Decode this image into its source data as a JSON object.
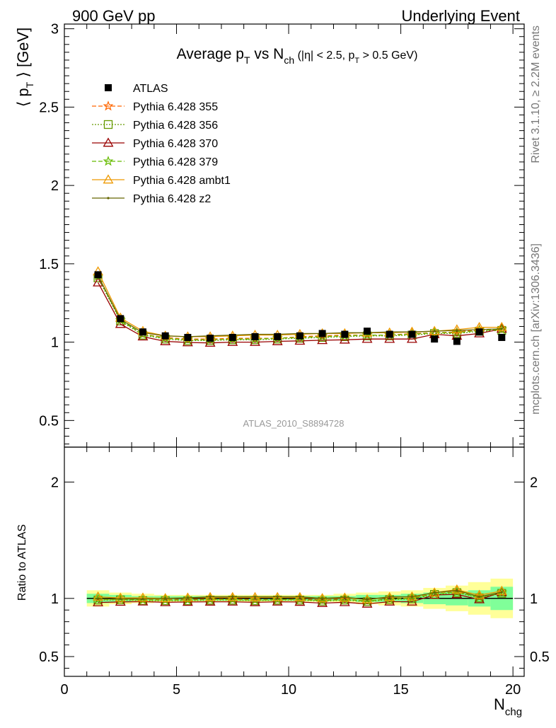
{
  "header": {
    "left": "900 GeV pp",
    "right": "Underlying Event"
  },
  "side_labels": {
    "rivet": "Rivet 3.1.10, ≥ 2.2M events",
    "mcplots": "mcplots.cern.ch [arXiv:1306.3436]"
  },
  "chart_data": {
    "type": "line",
    "title": "Average pT vs Nch (|η| < 2.5, pT > 0.5 GeV)",
    "analysis_label": "ATLAS_2010_S8894728",
    "xlabel": "Nchg",
    "ylabel": "⟨ pT ⟩ [GeV]",
    "xlim": [
      0,
      20.5
    ],
    "ylim": [
      0.33,
      3.03
    ],
    "xticks": [
      0,
      5,
      10,
      15,
      20
    ],
    "yticks": [
      0.5,
      1,
      1.5,
      2,
      2.5,
      3
    ],
    "legend_position": "top-left",
    "x": [
      1.5,
      2.5,
      3.5,
      4.5,
      5.5,
      6.5,
      7.5,
      8.5,
      9.5,
      10.5,
      11.5,
      12.5,
      13.5,
      14.5,
      15.5,
      16.5,
      17.5,
      18.5,
      19.5
    ],
    "data_series": {
      "name": "ATLAS",
      "values": [
        1.43,
        1.15,
        1.065,
        1.04,
        1.03,
        1.025,
        1.03,
        1.035,
        1.035,
        1.04,
        1.055,
        1.05,
        1.07,
        1.05,
        1.05,
        1.02,
        1.005,
        1.065,
        1.03
      ]
    },
    "series": [
      {
        "name": "Pythia 6.428 355",
        "color": "#ff6600",
        "dash": "6,3",
        "marker": "star",
        "values": [
          1.42,
          1.14,
          1.05,
          1.03,
          1.02,
          1.02,
          1.025,
          1.025,
          1.025,
          1.035,
          1.04,
          1.045,
          1.045,
          1.045,
          1.055,
          1.06,
          1.065,
          1.08,
          1.085
        ]
      },
      {
        "name": "Pythia 6.428 356",
        "color": "#669900",
        "dash": "2,2",
        "marker": "square",
        "values": [
          1.41,
          1.135,
          1.045,
          1.02,
          1.01,
          1.01,
          1.015,
          1.015,
          1.02,
          1.025,
          1.03,
          1.035,
          1.04,
          1.04,
          1.045,
          1.055,
          1.055,
          1.07,
          1.075
        ]
      },
      {
        "name": "Pythia 6.428 370",
        "color": "#990000",
        "dash": "",
        "marker": "triangle",
        "values": [
          1.38,
          1.115,
          1.035,
          1.005,
          0.998,
          0.995,
          1.0,
          1.0,
          1.005,
          1.008,
          1.012,
          1.015,
          1.02,
          1.02,
          1.02,
          1.05,
          1.04,
          1.055,
          1.085
        ]
      },
      {
        "name": "Pythia 6.428 379",
        "color": "#66bb00",
        "dash": "6,3",
        "marker": "star",
        "values": [
          1.42,
          1.14,
          1.05,
          1.025,
          1.015,
          1.015,
          1.02,
          1.02,
          1.025,
          1.03,
          1.035,
          1.04,
          1.045,
          1.045,
          1.05,
          1.06,
          1.06,
          1.075,
          1.08
        ]
      },
      {
        "name": "Pythia 6.428 ambt1",
        "color": "#ee9900",
        "dash": "",
        "marker": "triangle",
        "values": [
          1.45,
          1.155,
          1.07,
          1.04,
          1.035,
          1.035,
          1.04,
          1.045,
          1.045,
          1.05,
          1.055,
          1.055,
          1.06,
          1.06,
          1.065,
          1.07,
          1.08,
          1.095,
          1.095
        ]
      },
      {
        "name": "Pythia 6.428 z2",
        "color": "#666600",
        "dash": "",
        "marker": "dot",
        "values": [
          1.425,
          1.145,
          1.06,
          1.04,
          1.035,
          1.04,
          1.045,
          1.05,
          1.05,
          1.055,
          1.055,
          1.06,
          1.06,
          1.065,
          1.065,
          1.07,
          1.075,
          1.08,
          1.085
        ]
      }
    ],
    "ratio": {
      "ylabel": "Ratio to ATLAS",
      "ylim": [
        0.33,
        2.3
      ],
      "yticks": [
        0.5,
        1,
        2
      ],
      "reference": 1,
      "band_edges": [
        1,
        2,
        3,
        4,
        5,
        6,
        7,
        8,
        9,
        10,
        11,
        12,
        13,
        14,
        15,
        16,
        17,
        18,
        19,
        20
      ],
      "band_inner": [
        0.04,
        0.03,
        0.02,
        0.02,
        0.02,
        0.02,
        0.02,
        0.02,
        0.02,
        0.02,
        0.02,
        0.02,
        0.03,
        0.03,
        0.04,
        0.05,
        0.06,
        0.07,
        0.1
      ],
      "band_outer": [
        0.07,
        0.05,
        0.04,
        0.03,
        0.03,
        0.03,
        0.03,
        0.03,
        0.03,
        0.03,
        0.03,
        0.04,
        0.05,
        0.06,
        0.07,
        0.09,
        0.11,
        0.14,
        0.17
      ],
      "colors": {
        "inner": "#80ff99",
        "outer": "#ffff99"
      }
    }
  }
}
